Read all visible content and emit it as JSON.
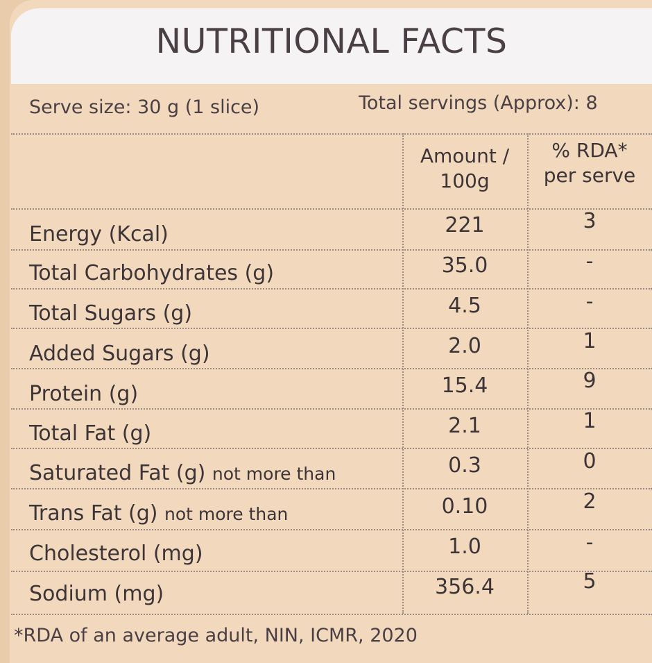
{
  "title": "NUTRITIONAL FACTS",
  "serve_size": "Serve size: 30 g (1 slice)",
  "total_servings": "Total servings (Approx): 8",
  "columns": {
    "amount_line1": "Amount /",
    "amount_line2": "100g",
    "rda_line1": "% RDA*",
    "rda_line2": "per serve"
  },
  "rows": [
    {
      "label": "Energy (Kcal)",
      "note": "",
      "amount": "221",
      "rda": "3"
    },
    {
      "label": "Total Carbohydrates (g)",
      "note": "",
      "amount": "35.0",
      "rda": "-"
    },
    {
      "label": "Total Sugars (g)",
      "note": "",
      "amount": "4.5",
      "rda": "-"
    },
    {
      "label": "Added Sugars (g)",
      "note": "",
      "amount": "2.0",
      "rda": "1"
    },
    {
      "label": "Protein (g)",
      "note": "",
      "amount": "15.4",
      "rda": "9"
    },
    {
      "label": "Total Fat (g)",
      "note": "",
      "amount": "2.1",
      "rda": "1"
    },
    {
      "label": "Saturated Fat (g)",
      "note": "not more than",
      "amount": "0.3",
      "rda": "0"
    },
    {
      "label": "Trans Fat (g)",
      "note": "not more than",
      "amount": "0.10",
      "rda": "2"
    },
    {
      "label": "Cholesterol (mg)",
      "note": "",
      "amount": "1.0",
      "rda": "-"
    },
    {
      "label": "Sodium (mg)",
      "note": "",
      "amount": "356.4",
      "rda": "5"
    }
  ],
  "footnote": "*RDA of an average adult, NIN, ICMR, 2020"
}
